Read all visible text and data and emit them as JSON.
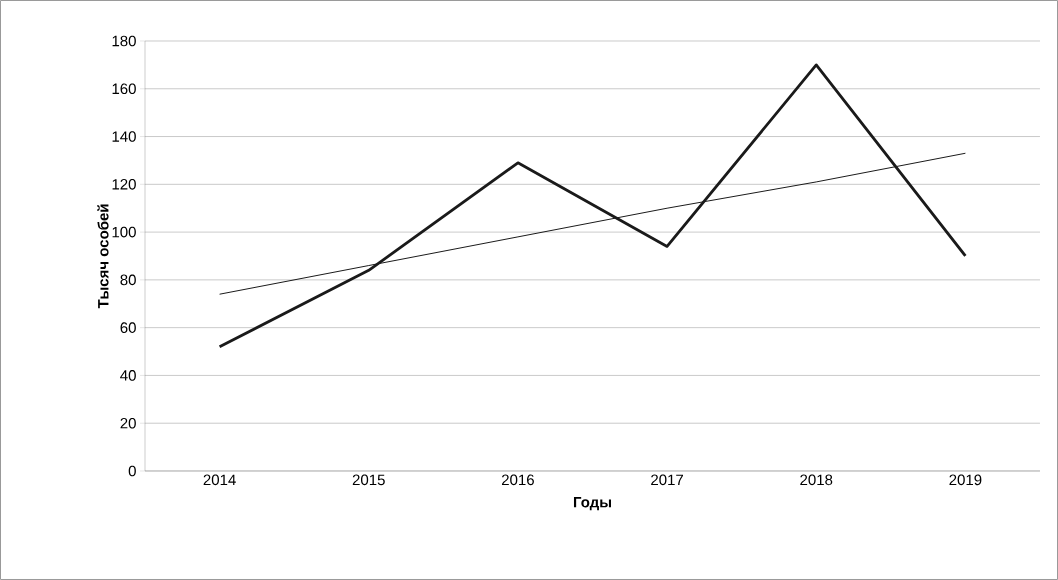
{
  "chart_data": {
    "type": "line",
    "xlabel": "Годы",
    "ylabel": "Тысяч особей",
    "categories": [
      "2014",
      "2015",
      "2016",
      "2017",
      "2018",
      "2019"
    ],
    "series": [
      {
        "color": "#1a1a1a",
        "values": [
          52,
          84,
          129,
          94,
          170,
          90
        ]
      },
      {
        "color": "#1a1a1a",
        "values": [
          74,
          86,
          98,
          110,
          121,
          133
        ],
        "line_style": "solid"
      }
    ],
    "ylim": [
      0,
      180
    ],
    "yticks": [
      0,
      20,
      40,
      60,
      80,
      100,
      120,
      140,
      160,
      180
    ],
    "grid": "y",
    "marker": "none"
  }
}
